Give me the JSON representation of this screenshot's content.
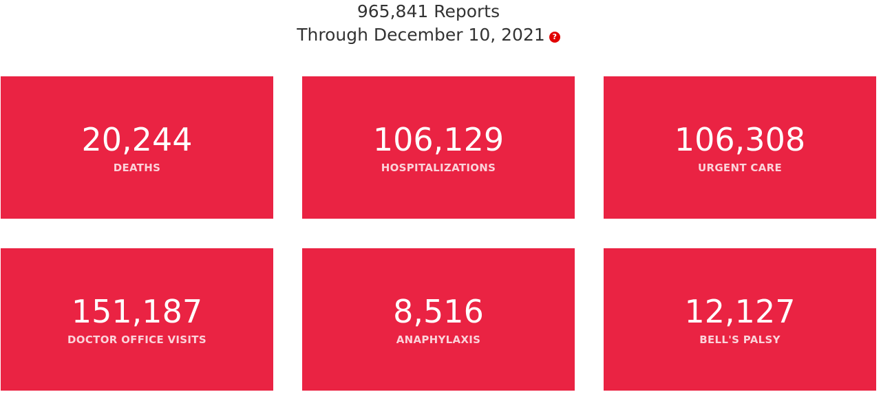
{
  "header": {
    "reports": "965,841 Reports",
    "through": "Through December 10, 2021",
    "help_icon": "question-mark-icon",
    "help_glyph": "?"
  },
  "cards": [
    {
      "value": "20,244",
      "label": "DEATHS"
    },
    {
      "value": "106,129",
      "label": "HOSPITALIZATIONS"
    },
    {
      "value": "106,308",
      "label": "URGENT CARE"
    },
    {
      "value": "151,187",
      "label": "DOCTOR OFFICE VISITS"
    },
    {
      "value": "8,516",
      "label": "ANAPHYLAXIS"
    },
    {
      "value": "12,127",
      "label": "BELL'S PALSY"
    }
  ],
  "colors": {
    "card_background": "#ea2343",
    "help_icon": "#e10000",
    "header_text": "#333333"
  }
}
